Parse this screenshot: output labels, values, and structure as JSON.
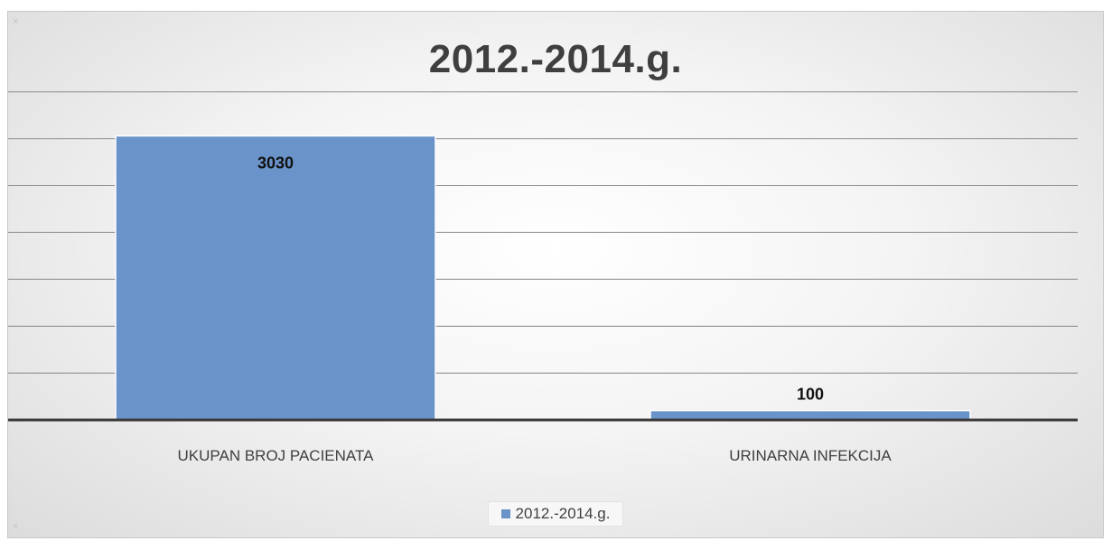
{
  "chart_data": {
    "type": "bar",
    "title": "2012.-2014.g.",
    "categories": [
      "UKUPAN BROJ PACIENATA",
      "URINARNA INFEKCIJA"
    ],
    "series": [
      {
        "name": "2012.-2014.g.",
        "values": [
          3030,
          100
        ],
        "color": "#6a93c9"
      }
    ],
    "data_labels": [
      "3030",
      "100"
    ],
    "ylim": [
      0,
      3500
    ],
    "gridline_step": 500,
    "grid": true,
    "axis_color": "#3a3a3a",
    "legend_position": "bottom",
    "xlabel": "",
    "ylabel": ""
  }
}
